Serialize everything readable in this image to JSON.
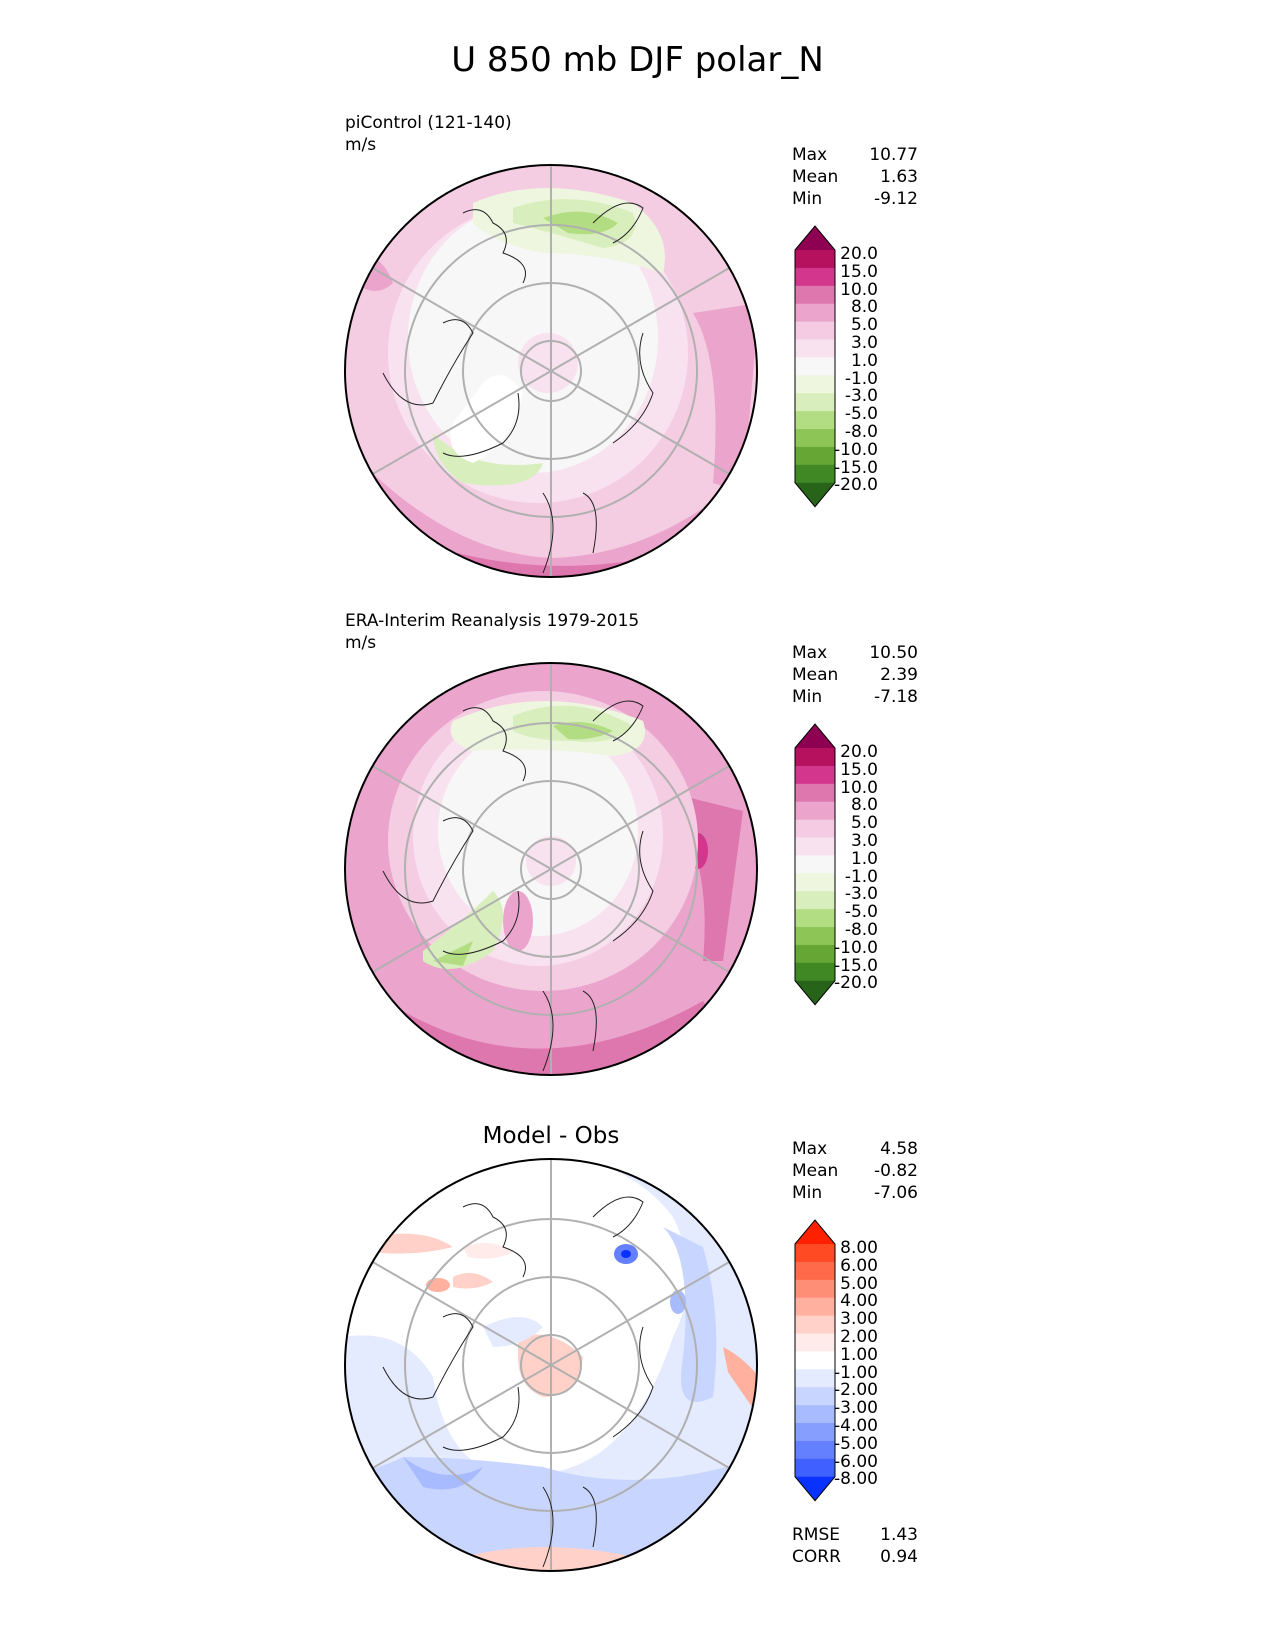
{
  "title": "U 850 mb DJF polar_N",
  "panels": [
    {
      "title_line1": "piControl (121-140)",
      "title_line2": "m/s",
      "stats": [
        {
          "label": "Max",
          "value": "10.77"
        },
        {
          "label": "Mean",
          "value": "1.63"
        },
        {
          "label": "Min",
          "value": "-9.12"
        }
      ],
      "colorbar_labels": [
        "20.0",
        "15.0",
        "10.0",
        "8.0",
        "5.0",
        "3.0",
        "1.0",
        "-1.0",
        "-3.0",
        "-5.0",
        "-8.0",
        "-10.0",
        "-15.0",
        "-20.0"
      ]
    },
    {
      "title_line1": "ERA-Interim Reanalysis 1979-2015",
      "title_line2": "m/s",
      "stats": [
        {
          "label": "Max",
          "value": "10.50"
        },
        {
          "label": "Mean",
          "value": "2.39"
        },
        {
          "label": "Min",
          "value": "-7.18"
        }
      ],
      "colorbar_labels": [
        "20.0",
        "15.0",
        "10.0",
        "8.0",
        "5.0",
        "3.0",
        "1.0",
        "-1.0",
        "-3.0",
        "-5.0",
        "-8.0",
        "-10.0",
        "-15.0",
        "-20.0"
      ]
    },
    {
      "title_line1": "Model - Obs",
      "stats": [
        {
          "label": "Max",
          "value": "4.58"
        },
        {
          "label": "Mean",
          "value": "-0.82"
        },
        {
          "label": "Min",
          "value": "-7.06"
        }
      ],
      "extra_stats": [
        {
          "label": "RMSE",
          "value": "1.43"
        },
        {
          "label": "CORR",
          "value": "0.94"
        }
      ],
      "colorbar_labels": [
        "8.00",
        "6.00",
        "5.00",
        "4.00",
        "3.00",
        "2.00",
        "1.00",
        "-1.00",
        "-2.00",
        "-3.00",
        "-4.00",
        "-5.00",
        "-6.00",
        "-8.00"
      ]
    }
  ],
  "colors": {
    "piyg": [
      "#8e0152",
      "#b5115f",
      "#d3368d",
      "#de77ae",
      "#eba5cd",
      "#f4cbe3",
      "#f8e2ef",
      "#f7f7f7",
      "#eef6df",
      "#d8eebc",
      "#b3dd83",
      "#8dc556",
      "#65a634",
      "#3f8824",
      "#276419"
    ],
    "bwr": [
      "#ff2000",
      "#ff4a24",
      "#ff6a4a",
      "#ff8e76",
      "#ffb09f",
      "#ffd1c8",
      "#ffecea",
      "#ffffff",
      "#e4ebff",
      "#c8d5ff",
      "#a8bbff",
      "#869fff",
      "#6480ff",
      "#4060ff",
      "#0a32ff"
    ]
  }
}
